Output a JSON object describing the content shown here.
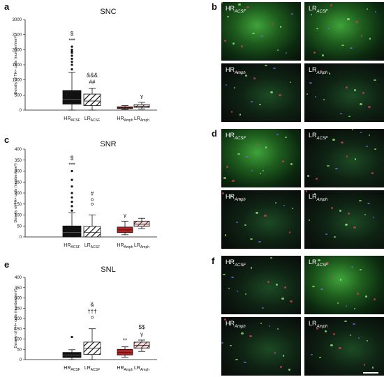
{
  "panels": [
    {
      "letter": "a",
      "title": "SNC",
      "ylabel": "Density of TH+ cells (number/mm²)",
      "yticks": [
        "0",
        "500",
        "1000",
        "1500",
        "2000",
        "2500",
        "3000"
      ]
    },
    {
      "letter": "c",
      "title": "SNR",
      "ylabel": "Density of TH+ cells (number/mm²)",
      "yticks": [
        "0",
        "50",
        "100",
        "150",
        "200",
        "250",
        "300",
        "350",
        "400"
      ]
    },
    {
      "letter": "e",
      "title": "SNL",
      "ylabel": "Density of TH+ cells (number/mm²)",
      "yticks": [
        "0",
        "50",
        "100",
        "150",
        "200",
        "250",
        "300",
        "350",
        "400"
      ]
    }
  ],
  "group_labels": {
    "hr_acsf": {
      "main": "HR",
      "sub": "ACSF"
    },
    "lr_acsf": {
      "main": "LR",
      "sub": "ACSF"
    },
    "hr_amph": {
      "main": "HR",
      "sub": "Amph"
    },
    "lr_amph": {
      "main": "LR",
      "sub": "Amph"
    }
  },
  "annotations": {
    "snc_hr_acsf": [
      "$",
      "***"
    ],
    "snc_lr_acsf": [
      "&&&",
      "##"
    ],
    "snc_lr_amph": [
      "γ"
    ],
    "snr_hr_acsf": [
      "$",
      "***"
    ],
    "snr_lr_acsf": [
      "#"
    ],
    "snr_hr_amph": [
      "γ"
    ],
    "snl_lr_acsf": [
      "&",
      "†††"
    ],
    "snl_hr_amph": [
      "**"
    ],
    "snl_lr_amph": [
      "$$",
      "γ"
    ]
  },
  "chart_data": [
    {
      "type": "box",
      "title": "SNC",
      "ylabel": "Density of TH+ cells (number/mm²)",
      "ylim": [
        0,
        3000
      ],
      "categories": [
        "HR ACSF",
        "LR ACSF",
        "HR Amph",
        "LR Amph"
      ],
      "boxes": [
        {
          "q1": 200,
          "median": 350,
          "q3": 650,
          "whisker_low": 0,
          "whisker_high": 1250,
          "outliers": [
            1350,
            1500,
            1600,
            1700,
            1800,
            1900,
            1950,
            2000,
            2100
          ]
        },
        {
          "q1": 150,
          "median": 300,
          "q3": 530,
          "whisker_low": 0,
          "whisker_high": 730,
          "outliers": []
        },
        {
          "q1": 50,
          "median": 80,
          "q3": 110,
          "whisker_low": 20,
          "whisker_high": 150,
          "outliers": []
        },
        {
          "q1": 90,
          "median": 130,
          "q3": 180,
          "whisker_low": 40,
          "whisker_high": 260,
          "outliers": []
        }
      ],
      "fill_colors": [
        "#111111",
        "hatch",
        "#b22222",
        "hatch-pink"
      ]
    },
    {
      "type": "box",
      "title": "SNR",
      "ylabel": "Density of TH+ cells (number/mm²)",
      "ylim": [
        0,
        400
      ],
      "categories": [
        "HR ACSF",
        "LR ACSF",
        "HR Amph",
        "LR Amph"
      ],
      "boxes": [
        {
          "q1": 0,
          "median": 20,
          "q3": 50,
          "whisker_low": 0,
          "whisker_high": 110,
          "outliers": [
            120,
            140,
            160,
            180,
            200,
            230,
            260,
            300
          ]
        },
        {
          "q1": 0,
          "median": 20,
          "q3": 48,
          "whisker_low": 0,
          "whisker_high": 100,
          "outliers": [
            150,
            170
          ]
        },
        {
          "q1": 20,
          "median": 32,
          "q3": 45,
          "whisker_low": 10,
          "whisker_high": 72,
          "outliers": []
        },
        {
          "q1": 48,
          "median": 58,
          "q3": 72,
          "whisker_low": 38,
          "whisker_high": 85,
          "outliers": []
        }
      ],
      "fill_colors": [
        "#111111",
        "hatch",
        "#b22222",
        "hatch-pink"
      ]
    },
    {
      "type": "box",
      "title": "SNL",
      "ylabel": "Density of TH+ cells (number/mm²)",
      "ylim": [
        0,
        400
      ],
      "categories": [
        "HR ACSF",
        "LR ACSF",
        "HR Amph",
        "LR Amph"
      ],
      "boxes": [
        {
          "q1": 10,
          "median": 22,
          "q3": 35,
          "whisker_low": 0,
          "whisker_high": 48,
          "outliers": [
            110
          ]
        },
        {
          "q1": 25,
          "median": 55,
          "q3": 85,
          "whisker_low": 0,
          "whisker_high": 150,
          "outliers": [
            205
          ]
        },
        {
          "q1": 22,
          "median": 35,
          "q3": 50,
          "whisker_low": 12,
          "whisker_high": 62,
          "outliers": []
        },
        {
          "q1": 55,
          "median": 70,
          "q3": 85,
          "whisker_low": 40,
          "whisker_high": 95,
          "outliers": []
        }
      ],
      "fill_colors": [
        "#111111",
        "hatch",
        "#b22222",
        "hatch-pink"
      ]
    }
  ],
  "micro_panels": [
    {
      "letter": "b",
      "images": [
        {
          "main": "HR",
          "sub": "ACSF",
          "tone": "green"
        },
        {
          "main": "LR",
          "sub": "ACSF",
          "tone": "green"
        },
        {
          "main": "HR",
          "sub": "Amph",
          "tone": "dark"
        },
        {
          "main": "LR",
          "sub": "Amph",
          "tone": "dark"
        }
      ]
    },
    {
      "letter": "d",
      "images": [
        {
          "main": "HR",
          "sub": "ACSF",
          "tone": "green"
        },
        {
          "main": "LR",
          "sub": "ACSF",
          "tone": "dark"
        },
        {
          "main": "HR",
          "sub": "Amph",
          "tone": "dark"
        },
        {
          "main": "LR",
          "sub": "Amph",
          "tone": "dark"
        }
      ]
    },
    {
      "letter": "f",
      "images": [
        {
          "main": "HR",
          "sub": "ACSF",
          "tone": "dark"
        },
        {
          "main": "LR",
          "sub": "ACSF",
          "tone": "green"
        },
        {
          "main": "HR",
          "sub": "Amph",
          "tone": "dark"
        },
        {
          "main": "LR",
          "sub": "Amph",
          "tone": "dark"
        }
      ]
    }
  ]
}
